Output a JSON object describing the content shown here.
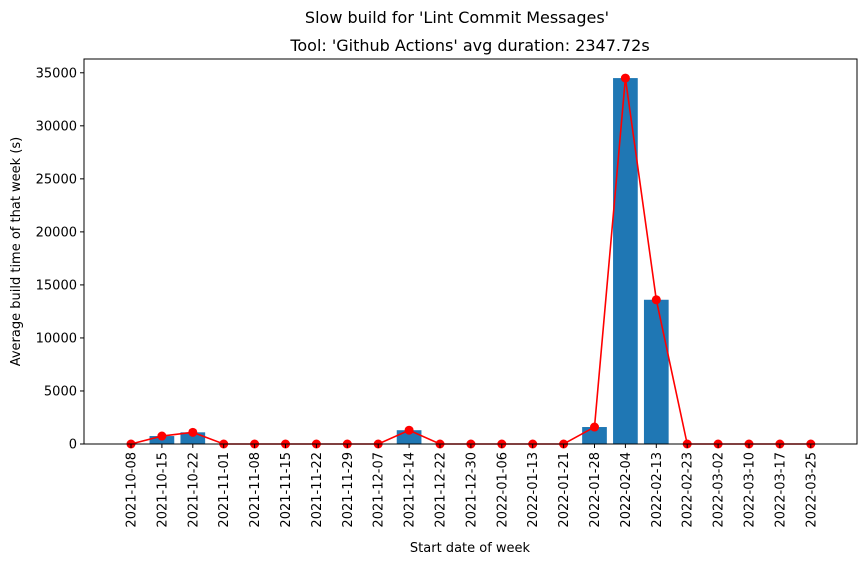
{
  "chart_data": {
    "type": "bar",
    "suptitle": "Slow build for 'Lint Commit Messages'",
    "title": "Tool: 'Github Actions' avg duration: 2347.72s",
    "xlabel": "Start date of week",
    "ylabel": "Average build time of that week (s)",
    "ylim": [
      0,
      36300
    ],
    "yticks": [
      0,
      5000,
      10000,
      15000,
      20000,
      25000,
      30000,
      35000
    ],
    "grid": false,
    "categories": [
      "2021-10-08",
      "2021-10-15",
      "2021-10-22",
      "2021-11-01",
      "2021-11-08",
      "2021-11-15",
      "2021-11-22",
      "2021-11-29",
      "2021-12-07",
      "2021-12-14",
      "2021-12-22",
      "2021-12-30",
      "2022-01-06",
      "2022-01-13",
      "2022-01-21",
      "2022-01-28",
      "2022-02-04",
      "2022-02-13",
      "2022-02-23",
      "2022-03-02",
      "2022-03-10",
      "2022-03-17",
      "2022-03-25"
    ],
    "values": [
      0,
      750,
      1100,
      0,
      0,
      0,
      0,
      0,
      0,
      1300,
      0,
      0,
      0,
      0,
      0,
      1600,
      34500,
      13600,
      0,
      0,
      0,
      0,
      0
    ],
    "bar_color": "#1f77b4",
    "line_color": "#ff0000"
  }
}
